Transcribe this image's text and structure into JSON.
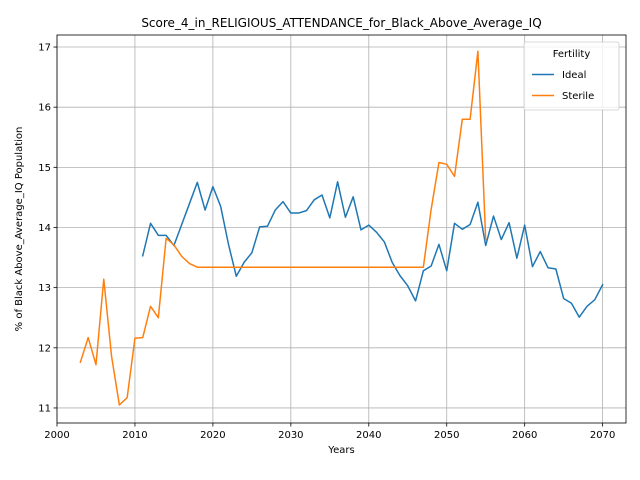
{
  "chart_data": {
    "type": "line",
    "title": "Score_4_in_RELIGIOUS_ATTENDANCE_for_Black_Above_Average_IQ",
    "xlabel": "Years",
    "ylabel": "% of Black Above_Average_IQ Population",
    "xlim": [
      2000,
      2073
    ],
    "ylim": [
      10.75,
      17.2
    ],
    "xticks": [
      2000,
      2010,
      2020,
      2030,
      2040,
      2050,
      2060,
      2070
    ],
    "yticks": [
      11,
      12,
      13,
      14,
      15,
      16,
      17
    ],
    "grid": true,
    "legend": {
      "title": "Fertility",
      "placement": "top-right"
    },
    "series": [
      {
        "name": "Ideal",
        "color": "#1f77b4",
        "x": [
          2011,
          2012,
          2013,
          2014,
          2015,
          2016,
          2017,
          2018,
          2019,
          2020,
          2021,
          2022,
          2023,
          2024,
          2025,
          2026,
          2027,
          2028,
          2029,
          2030,
          2031,
          2032,
          2033,
          2034,
          2035,
          2036,
          2037,
          2038,
          2039,
          2040,
          2041,
          2042,
          2043,
          2044,
          2045,
          2046,
          2047,
          2048,
          2049,
          2050,
          2051,
          2052,
          2053,
          2054,
          2055,
          2056,
          2057,
          2058,
          2059,
          2060,
          2061,
          2062,
          2063,
          2064,
          2065,
          2066,
          2067,
          2068,
          2069,
          2070
        ],
        "values": [
          13.53,
          14.07,
          13.87,
          13.87,
          13.7,
          14.05,
          14.4,
          14.75,
          14.29,
          14.68,
          14.35,
          13.72,
          13.19,
          13.42,
          13.58,
          14.01,
          14.02,
          14.29,
          14.43,
          14.24,
          14.24,
          14.28,
          14.46,
          14.54,
          14.16,
          14.76,
          14.17,
          14.51,
          13.96,
          14.04,
          13.92,
          13.76,
          13.42,
          13.2,
          13.03,
          12.78,
          13.28,
          13.36,
          13.72,
          13.28,
          14.07,
          13.97,
          14.05,
          14.42,
          13.7,
          14.19,
          13.8,
          14.08,
          13.49,
          14.04,
          13.35,
          13.6,
          13.33,
          13.31,
          12.82,
          12.74,
          12.51,
          12.69,
          12.8,
          13.05
        ]
      },
      {
        "name": "Sterile",
        "color": "#ff7f0e",
        "x": [
          2003,
          2004,
          2005,
          2006,
          2007,
          2008,
          2009,
          2010,
          2011,
          2012,
          2013,
          2014,
          2015,
          2016,
          2017,
          2018,
          2019,
          2020,
          2021,
          2022,
          2023,
          2024,
          2025,
          2026,
          2027,
          2028,
          2029,
          2030,
          2031,
          2032,
          2033,
          2034,
          2035,
          2036,
          2037,
          2038,
          2039,
          2040,
          2041,
          2042,
          2043,
          2044,
          2045,
          2046,
          2047,
          2048,
          2049,
          2050,
          2051,
          2052,
          2053,
          2054,
          2055
        ],
        "values": [
          11.76,
          12.17,
          11.72,
          13.14,
          11.86,
          11.05,
          11.17,
          12.16,
          12.17,
          12.69,
          12.5,
          13.82,
          13.71,
          13.52,
          13.4,
          13.34,
          13.34,
          13.34,
          13.34,
          13.34,
          13.34,
          13.34,
          13.34,
          13.34,
          13.34,
          13.34,
          13.34,
          13.34,
          13.34,
          13.34,
          13.34,
          13.34,
          13.34,
          13.34,
          13.34,
          13.34,
          13.34,
          13.34,
          13.34,
          13.34,
          13.34,
          13.34,
          13.34,
          13.34,
          13.34,
          14.3,
          15.08,
          15.05,
          14.85,
          15.8,
          15.8,
          16.93,
          13.8
        ]
      }
    ]
  }
}
